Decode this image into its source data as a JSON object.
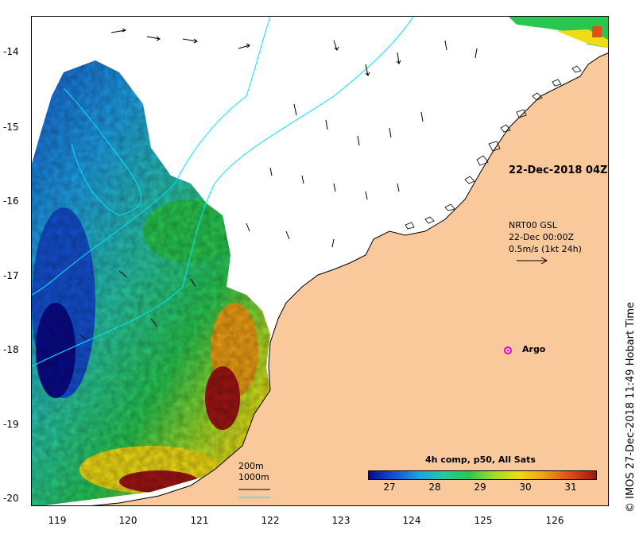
{
  "map": {
    "date_label": "22-Dec-2018 04Z",
    "current_info": {
      "line1": "NRT00 GSL",
      "line2": "22-Dec 00:00Z",
      "line3": "0.5m/s (1kt 24h)"
    },
    "argo_label": "Argo",
    "depth_legend": {
      "line1": "200m",
      "line2": "1000m"
    },
    "credit": "© IMOS 27-Dec-2018 11:49 Hobart Time",
    "y_ticks": [
      "-14",
      "-15",
      "-16",
      "-17",
      "-18",
      "-19",
      "-20"
    ],
    "x_ticks": [
      "119",
      "120",
      "121",
      "122",
      "123",
      "124",
      "125",
      "126"
    ],
    "colorbar": {
      "title": "4h comp, p50, All Sats",
      "ticks": [
        "27",
        "28",
        "29",
        "30",
        "31"
      ],
      "min": 26.5,
      "max": 31.5,
      "colors": [
        "#0a0a8c",
        "#1450d2",
        "#1ea0e6",
        "#28c8a0",
        "#28c850",
        "#a0dc28",
        "#f0dc14",
        "#f0a014",
        "#e05014",
        "#a01414"
      ]
    },
    "colors": {
      "land": "#f9c99b",
      "coastline": "#000000",
      "isobath": "#00e5ff",
      "argo_marker": "#e000e0"
    },
    "icons": [
      "current-arrow-icon",
      "argo-float-icon"
    ]
  }
}
